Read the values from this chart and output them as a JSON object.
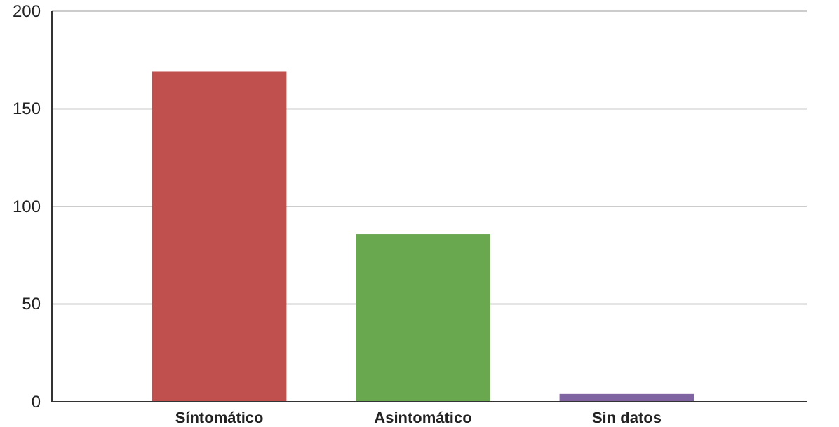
{
  "chart_data": {
    "type": "bar",
    "categories": [
      "Síntomático",
      "Asintomático",
      "Sin datos"
    ],
    "values": [
      169,
      86,
      4
    ],
    "colors": [
      "#c0504d",
      "#6aa84f",
      "#8064a2"
    ],
    "ylim": [
      0,
      200
    ],
    "yticks": [
      0,
      50,
      100,
      150,
      200
    ],
    "grid": "y"
  }
}
